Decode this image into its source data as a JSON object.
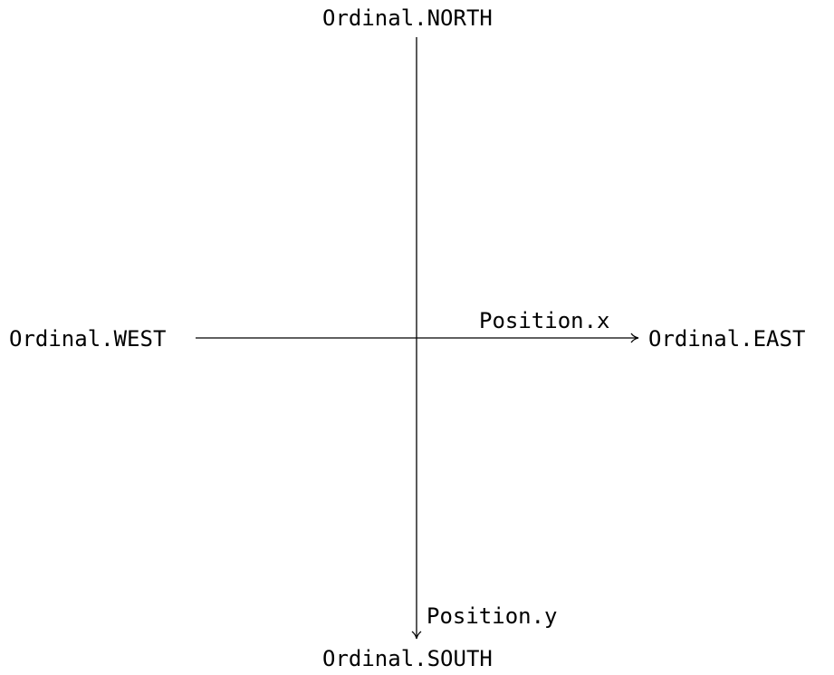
{
  "diagram": {
    "labels": {
      "north": "Ordinal.NORTH",
      "south": "Ordinal.SOUTH",
      "west": "Ordinal.WEST",
      "east": "Ordinal.EAST",
      "position_x": "Position.x",
      "position_y": "Position.y"
    },
    "line_color": "#000000",
    "text_color": "#000000"
  }
}
